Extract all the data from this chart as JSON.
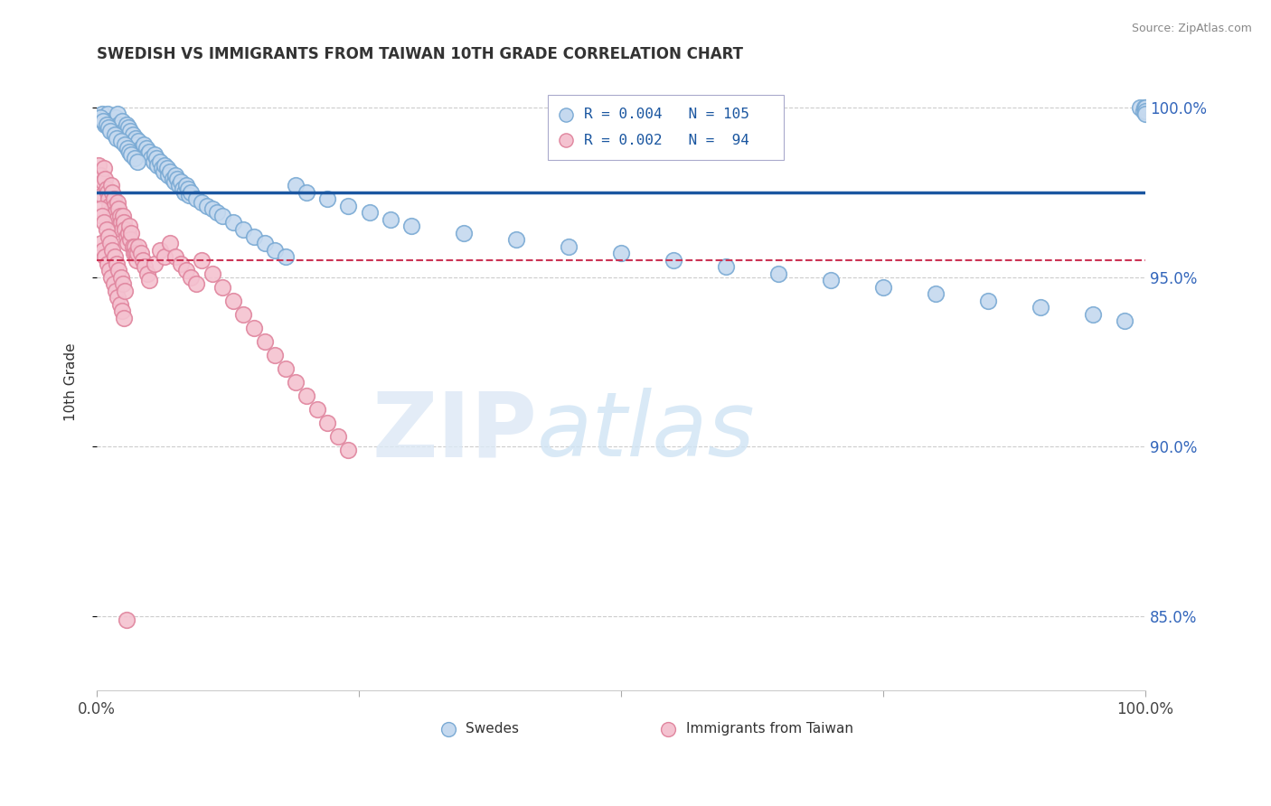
{
  "title": "SWEDISH VS IMMIGRANTS FROM TAIWAN 10TH GRADE CORRELATION CHART",
  "source": "Source: ZipAtlas.com",
  "ylabel": "10th Grade",
  "ytick_values": [
    0.85,
    0.9,
    0.95,
    1.0
  ],
  "ytick_labels": [
    "85.0%",
    "90.0%",
    "95.0%",
    "100.0%"
  ],
  "xlim": [
    0.0,
    1.0
  ],
  "ylim": [
    0.828,
    1.01
  ],
  "legend_text_blue": "R = 0.004   N = 105",
  "legend_text_pink": "R = 0.002   N =  94",
  "legend_label_blue": "Swedes",
  "legend_label_pink": "Immigrants from Taiwan",
  "blue_fill": "#c5d9ef",
  "blue_edge": "#7aaad4",
  "pink_fill": "#f4c2d0",
  "pink_edge": "#e0859e",
  "trend_blue_color": "#1a56a0",
  "trend_pink_color": "#cc3355",
  "trend_blue_y": 0.975,
  "trend_pink_y": 0.955,
  "blue_x": [
    0.005,
    0.008,
    0.01,
    0.012,
    0.014,
    0.015,
    0.016,
    0.018,
    0.02,
    0.021,
    0.022,
    0.024,
    0.025,
    0.026,
    0.028,
    0.03,
    0.032,
    0.034,
    0.035,
    0.037,
    0.038,
    0.04,
    0.042,
    0.044,
    0.045,
    0.047,
    0.048,
    0.05,
    0.052,
    0.054,
    0.055,
    0.057,
    0.058,
    0.06,
    0.062,
    0.064,
    0.065,
    0.067,
    0.068,
    0.07,
    0.072,
    0.074,
    0.075,
    0.077,
    0.078,
    0.08,
    0.082,
    0.084,
    0.085,
    0.087,
    0.088,
    0.09,
    0.095,
    0.1,
    0.105,
    0.11,
    0.115,
    0.12,
    0.13,
    0.14,
    0.15,
    0.16,
    0.17,
    0.18,
    0.19,
    0.2,
    0.22,
    0.24,
    0.26,
    0.28,
    0.3,
    0.35,
    0.4,
    0.45,
    0.5,
    0.55,
    0.6,
    0.65,
    0.7,
    0.75,
    0.8,
    0.85,
    0.9,
    0.95,
    0.98,
    0.995,
    0.998,
    0.999,
    1.0,
    1.0,
    1.0,
    0.003,
    0.006,
    0.009,
    0.011,
    0.013,
    0.017,
    0.019,
    0.023,
    0.027,
    0.029,
    0.031,
    0.033,
    0.036,
    0.039
  ],
  "blue_y": [
    0.998,
    0.995,
    0.998,
    0.996,
    0.995,
    0.993,
    0.996,
    0.997,
    0.998,
    0.995,
    0.994,
    0.996,
    0.993,
    0.992,
    0.995,
    0.994,
    0.993,
    0.992,
    0.99,
    0.991,
    0.989,
    0.99,
    0.988,
    0.987,
    0.989,
    0.988,
    0.986,
    0.987,
    0.985,
    0.984,
    0.986,
    0.985,
    0.983,
    0.984,
    0.982,
    0.981,
    0.983,
    0.982,
    0.98,
    0.981,
    0.979,
    0.978,
    0.98,
    0.979,
    0.977,
    0.978,
    0.976,
    0.975,
    0.977,
    0.976,
    0.974,
    0.975,
    0.973,
    0.972,
    0.971,
    0.97,
    0.969,
    0.968,
    0.966,
    0.964,
    0.962,
    0.96,
    0.958,
    0.956,
    0.977,
    0.975,
    0.973,
    0.971,
    0.969,
    0.967,
    0.965,
    0.963,
    0.961,
    0.959,
    0.957,
    0.955,
    0.953,
    0.951,
    0.949,
    0.947,
    0.945,
    0.943,
    0.941,
    0.939,
    0.937,
    1.0,
    0.999,
    1.0,
    1.0,
    0.999,
    0.998,
    0.997,
    0.996,
    0.995,
    0.994,
    0.993,
    0.992,
    0.991,
    0.99,
    0.989,
    0.988,
    0.987,
    0.986,
    0.985,
    0.984
  ],
  "pink_x": [
    0.002,
    0.003,
    0.004,
    0.005,
    0.006,
    0.007,
    0.008,
    0.009,
    0.01,
    0.011,
    0.012,
    0.013,
    0.014,
    0.015,
    0.016,
    0.017,
    0.018,
    0.019,
    0.02,
    0.021,
    0.022,
    0.023,
    0.024,
    0.025,
    0.026,
    0.027,
    0.028,
    0.029,
    0.03,
    0.031,
    0.032,
    0.033,
    0.034,
    0.035,
    0.036,
    0.037,
    0.038,
    0.039,
    0.04,
    0.042,
    0.044,
    0.046,
    0.048,
    0.05,
    0.055,
    0.06,
    0.065,
    0.07,
    0.075,
    0.08,
    0.085,
    0.09,
    0.095,
    0.1,
    0.11,
    0.12,
    0.13,
    0.14,
    0.15,
    0.16,
    0.17,
    0.18,
    0.19,
    0.2,
    0.21,
    0.22,
    0.23,
    0.24,
    0.004,
    0.006,
    0.008,
    0.01,
    0.012,
    0.014,
    0.016,
    0.018,
    0.02,
    0.022,
    0.024,
    0.026,
    0.003,
    0.005,
    0.007,
    0.009,
    0.011,
    0.013,
    0.015,
    0.017,
    0.019,
    0.021,
    0.023,
    0.025,
    0.027,
    0.028
  ],
  "pink_y": [
    0.983,
    0.98,
    0.977,
    0.974,
    0.978,
    0.982,
    0.979,
    0.976,
    0.975,
    0.973,
    0.971,
    0.969,
    0.977,
    0.975,
    0.973,
    0.971,
    0.969,
    0.967,
    0.972,
    0.97,
    0.968,
    0.966,
    0.964,
    0.968,
    0.966,
    0.964,
    0.962,
    0.96,
    0.963,
    0.965,
    0.961,
    0.963,
    0.959,
    0.957,
    0.959,
    0.957,
    0.955,
    0.957,
    0.959,
    0.957,
    0.955,
    0.953,
    0.951,
    0.949,
    0.954,
    0.958,
    0.956,
    0.96,
    0.956,
    0.954,
    0.952,
    0.95,
    0.948,
    0.955,
    0.951,
    0.947,
    0.943,
    0.939,
    0.935,
    0.931,
    0.927,
    0.923,
    0.919,
    0.915,
    0.911,
    0.907,
    0.903,
    0.899,
    0.96,
    0.958,
    0.956,
    0.954,
    0.952,
    0.95,
    0.948,
    0.946,
    0.944,
    0.942,
    0.94,
    0.938,
    0.97,
    0.968,
    0.966,
    0.964,
    0.962,
    0.96,
    0.958,
    0.956,
    0.954,
    0.952,
    0.95,
    0.948,
    0.946,
    0.849
  ]
}
